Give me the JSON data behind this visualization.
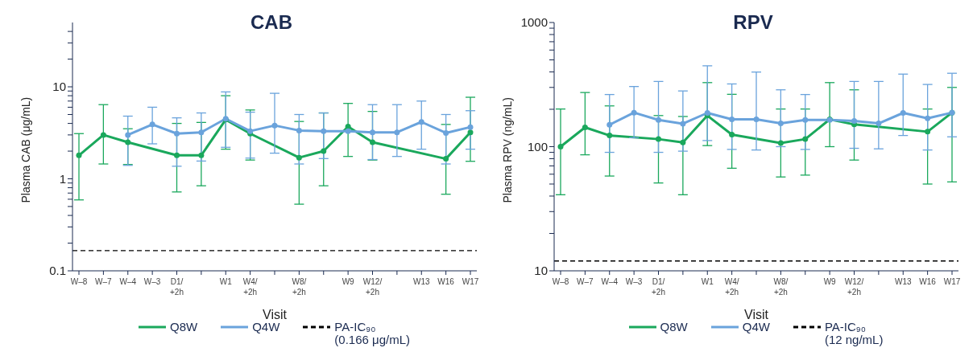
{
  "chart_data": [
    {
      "type": "line",
      "title": "CAB",
      "xlabel": "Visit",
      "ylabel": "Plasma CAB (μg/mL)",
      "log": true,
      "legend": "bottom",
      "marker": "circle",
      "categories": [
        "W–8",
        "W–7",
        "W–4",
        "W–3",
        "D1/\n+2h",
        null,
        "W1",
        "W4/\n+2h",
        null,
        "W8/\n+2h",
        null,
        "W9",
        "W12/\n+2h",
        null,
        "W13",
        "W16",
        "W17"
      ],
      "ylim": [
        0.1,
        50
      ],
      "yticks": [
        0.1,
        {
          "value": 0.2,
          "label": null
        },
        {
          "value": 0.3,
          "label": null
        },
        {
          "value": 0.4,
          "label": null
        },
        {
          "value": 0.5,
          "label": null
        },
        {
          "value": 0.6,
          "label": null
        },
        {
          "value": 0.7,
          "label": null
        },
        {
          "value": 0.8,
          "label": null
        },
        {
          "value": 0.9,
          "label": null
        },
        1,
        {
          "value": 2,
          "label": null
        },
        {
          "value": 3,
          "label": null
        },
        {
          "value": 4,
          "label": null
        },
        {
          "value": 5,
          "label": null
        },
        {
          "value": 6,
          "label": null
        },
        {
          "value": 7,
          "label": null
        },
        {
          "value": 8,
          "label": null
        },
        {
          "value": 9,
          "label": null
        },
        10,
        {
          "value": 20,
          "label": null
        },
        {
          "value": 30,
          "label": null
        },
        {
          "value": 40,
          "label": null
        }
      ],
      "series": [
        {
          "name": "Q8W",
          "color": "#1aa85c",
          "values": [
            1.8,
            3.0,
            2.5,
            null,
            1.8,
            1.8,
            4.4,
            3.1,
            null,
            1.7,
            2.0,
            3.7,
            2.5,
            null,
            null,
            1.65,
            3.2
          ],
          "errors": [
            [
              0.59,
              3.1
            ],
            [
              1.45,
              6.4
            ],
            [
              1.43,
              3.5
            ],
            null,
            [
              0.72,
              4.0
            ],
            [
              0.84,
              4.1
            ],
            [
              2.1,
              8.0
            ],
            [
              1.6,
              5.6
            ],
            null,
            [
              0.53,
              4.2
            ],
            [
              0.84,
              5.2
            ],
            [
              1.75,
              6.6
            ],
            [
              1.6,
              5.4
            ],
            null,
            null,
            [
              0.68,
              3.9
            ],
            [
              1.55,
              7.7
            ]
          ]
        },
        {
          "name": "Q4W",
          "color": "#6aa3dc",
          "values": [
            null,
            null,
            3.0,
            3.9,
            3.1,
            3.2,
            4.5,
            3.3,
            3.8,
            3.35,
            3.3,
            3.3,
            3.2,
            3.2,
            4.15,
            3.15,
            3.65
          ],
          "errors": [
            null,
            null,
            [
              1.4,
              4.8
            ],
            [
              2.4,
              6.0
            ],
            [
              1.37,
              4.6
            ],
            [
              1.56,
              5.2
            ],
            [
              2.2,
              8.8
            ],
            [
              1.68,
              5.3
            ],
            [
              1.9,
              8.5
            ],
            [
              1.45,
              5.0
            ],
            [
              1.66,
              5.2
            ],
            null,
            [
              1.62,
              6.4
            ],
            [
              1.75,
              6.4
            ],
            [
              2.1,
              7.0
            ],
            [
              1.45,
              5.0
            ],
            [
              2.1,
              5.5
            ]
          ]
        }
      ],
      "ref_lines": [
        {
          "axis": "y",
          "value": 0.166,
          "label": "PA-IC₉₀\n(0.166 μg/mL)",
          "color": "#000000",
          "line_style": "dashed"
        }
      ]
    },
    {
      "type": "line",
      "title": "RPV",
      "xlabel": "Visit",
      "ylabel": "Plasma RPV (ng/mL)",
      "log": true,
      "legend": "bottom",
      "marker": "circle",
      "categories": [
        "W–8",
        "W–7",
        "W–4",
        "W–3",
        "D1/\n+2h",
        null,
        "W1",
        "W4/\n+2h",
        null,
        "W8/\n+2h",
        null,
        "W9",
        "W12/\n+2h",
        null,
        "W13",
        "W16",
        "W17"
      ],
      "ylim": [
        10,
        1000
      ],
      "yticks": [
        10,
        {
          "value": 20,
          "label": null
        },
        {
          "value": 30,
          "label": null
        },
        {
          "value": 40,
          "label": null
        },
        {
          "value": 50,
          "label": null
        },
        {
          "value": 60,
          "label": null
        },
        {
          "value": 70,
          "label": null
        },
        {
          "value": 80,
          "label": null
        },
        {
          "value": 90,
          "label": null
        },
        100,
        {
          "value": 200,
          "label": null
        },
        {
          "value": 300,
          "label": null
        },
        {
          "value": 400,
          "label": null
        },
        {
          "value": 500,
          "label": null
        },
        {
          "value": 600,
          "label": null
        },
        {
          "value": 700,
          "label": null
        },
        {
          "value": 800,
          "label": null
        },
        {
          "value": 900,
          "label": null
        },
        1000
      ],
      "series": [
        {
          "name": "Q8W",
          "color": "#1aa85c",
          "values": [
            100,
            143,
            123,
            null,
            115,
            108,
            178,
            125,
            null,
            107,
            115,
            166,
            151,
            null,
            null,
            132,
            188
          ],
          "errors": [
            [
              41,
              201
            ],
            [
              86,
              273
            ],
            [
              58,
              213
            ],
            null,
            [
              51,
              178
            ],
            [
              41,
              175
            ],
            [
              102,
              328
            ],
            [
              67,
              264
            ],
            null,
            [
              57,
              201
            ],
            [
              59,
              201
            ],
            [
              100,
              328
            ],
            [
              78,
              287
            ],
            null,
            null,
            [
              50,
              201
            ],
            [
              52,
              300
            ]
          ]
        },
        {
          "name": "Q4W",
          "color": "#6aa3dc",
          "values": [
            null,
            null,
            150,
            188,
            164,
            153,
            187,
            166,
            166,
            154,
            164,
            164,
            161,
            154,
            187,
            169,
            188
          ],
          "errors": [
            null,
            null,
            [
              90,
              263
            ],
            [
              118,
              305
            ],
            [
              90,
              335
            ],
            [
              92,
              281
            ],
            [
              112,
              448
            ],
            [
              95,
              320
            ],
            [
              94,
              399
            ],
            [
              100,
              287
            ],
            [
              95,
              263
            ],
            null,
            [
              97,
              335
            ],
            [
              96,
              335
            ],
            [
              123,
              384
            ],
            [
              94,
              317
            ],
            [
              120,
              390
            ]
          ]
        }
      ],
      "ref_lines": [
        {
          "axis": "y",
          "value": 12,
          "label": "PA-IC₉₀\n(12 ng/mL)",
          "color": "#000000",
          "line_style": "dashed"
        }
      ]
    }
  ]
}
